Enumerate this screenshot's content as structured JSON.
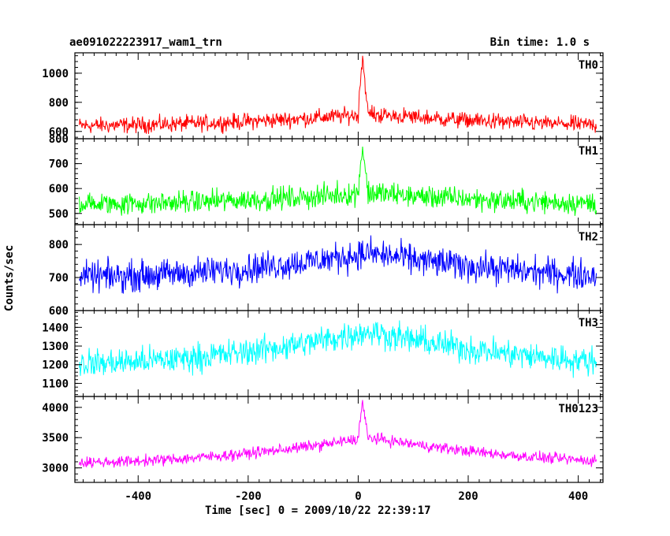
{
  "header": {
    "title": "ae091022223917_wam1_trn",
    "bin_time": "Bin time: 1.0 s"
  },
  "chart_data": {
    "type": "line",
    "xlabel": "Time [sec] 0 = 2009/10/22 22:39:17",
    "ylabel": "Counts/sec",
    "xlim": [
      -515,
      445
    ],
    "xticks": [
      -400,
      -200,
      0,
      200,
      400
    ],
    "panels": [
      {
        "name": "TH0",
        "color": "#ff0000",
        "ylim": [
          550,
          1140
        ],
        "yticks": [
          600,
          800,
          1000
        ],
        "shape": {
          "base": 600,
          "peak": 715,
          "noise": 55,
          "spike": 1140
        }
      },
      {
        "name": "TH1",
        "color": "#00ff00",
        "ylim": [
          455,
          800
        ],
        "yticks": [
          500,
          600,
          700,
          800
        ],
        "shape": {
          "base": 515,
          "peak": 580,
          "noise": 45,
          "spike": 790
        }
      },
      {
        "name": "TH2",
        "color": "#0000ff",
        "ylim": [
          600,
          860
        ],
        "yticks": [
          600,
          700,
          800
        ],
        "shape": {
          "base": 665,
          "peak": 770,
          "noise": 45,
          "spike": 0
        }
      },
      {
        "name": "TH3",
        "color": "#00ffff",
        "ylim": [
          1030,
          1490
        ],
        "yticks": [
          1100,
          1200,
          1300,
          1400
        ],
        "shape": {
          "base": 1120,
          "peak": 1370,
          "noise": 75,
          "spike": 0
        }
      },
      {
        "name": "TH0123",
        "color": "#ff00ff",
        "ylim": [
          2760,
          4180
        ],
        "yticks": [
          3000,
          3500,
          4000
        ],
        "shape": {
          "base": 2880,
          "peak": 3480,
          "noise": 90,
          "spike": 4150
        }
      }
    ]
  }
}
